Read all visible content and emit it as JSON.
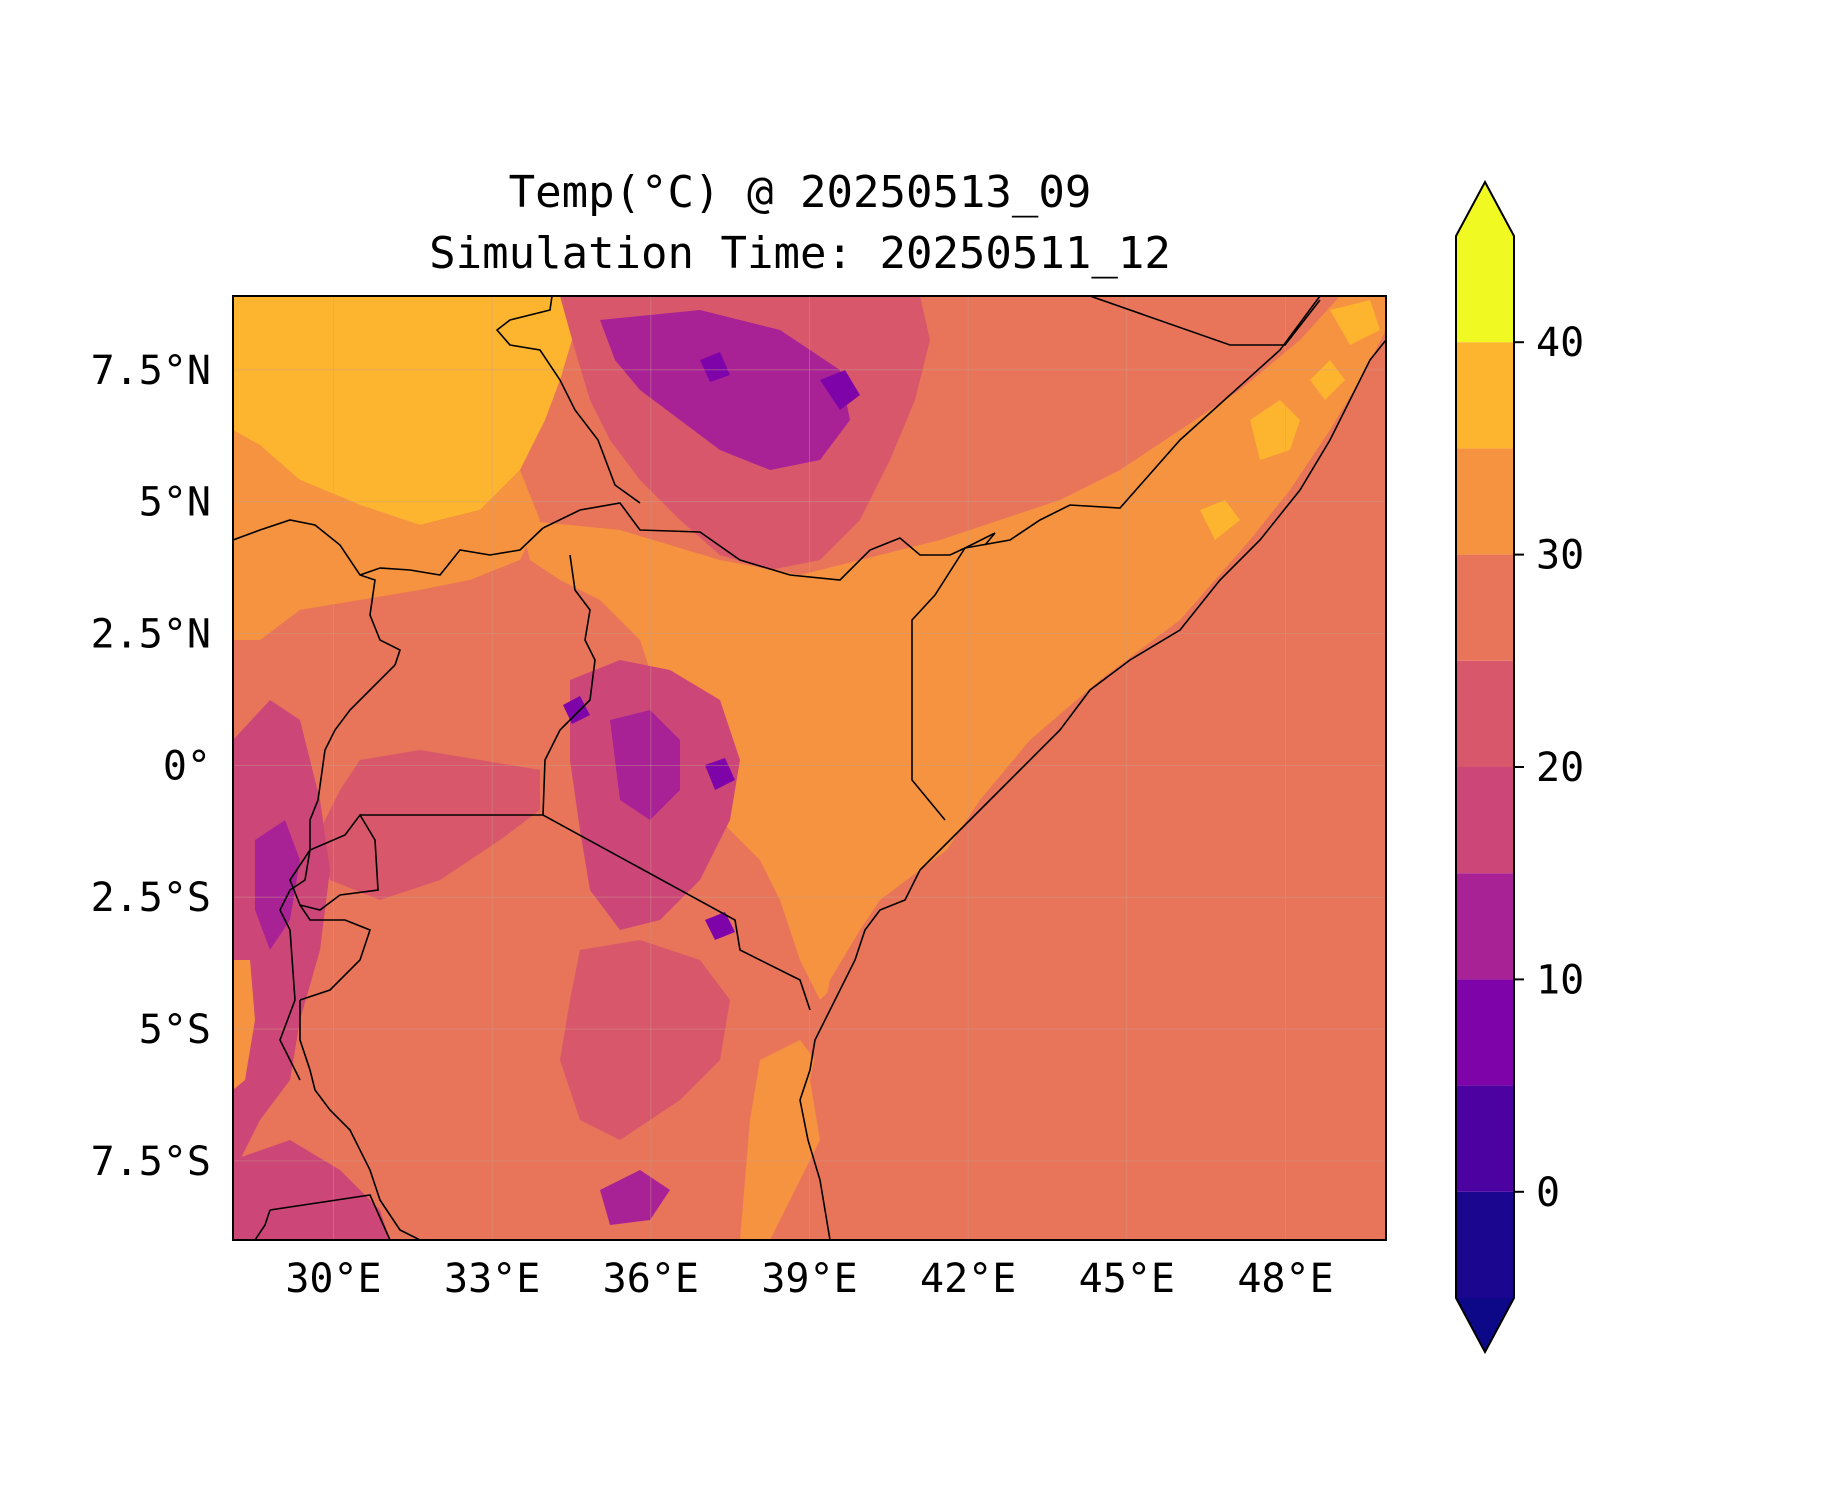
{
  "title": {
    "line1": "Temp(°C) @ 20250513_09",
    "line2": "Simulation Time: 20250511_12"
  },
  "map": {
    "type": "filled-contour temperature map",
    "region": "East Africa",
    "lon_ticks": [
      "30°E",
      "33°E",
      "36°E",
      "39°E",
      "42°E",
      "45°E",
      "48°E"
    ],
    "lat_ticks": [
      "7.5°N",
      "5°N",
      "2.5°N",
      "0°",
      "2.5°S",
      "5°S",
      "7.5°S"
    ],
    "lon_values": [
      30,
      33,
      36,
      39,
      42,
      45,
      48
    ],
    "lat_values": [
      7.5,
      5,
      2.5,
      0,
      -2.5,
      -5,
      -7.5
    ],
    "lon_range": [
      28.1,
      49.9
    ],
    "lat_range": [
      -9,
      8.9
    ],
    "grid": true,
    "borders": "country borders and coastline in black"
  },
  "colorbar": {
    "ticks": [
      "0",
      "10",
      "20",
      "30",
      "40"
    ],
    "tick_values": [
      0,
      10,
      20,
      30,
      40
    ],
    "range": [
      -5,
      45
    ],
    "extend": "both",
    "levels": [
      -5,
      0,
      5,
      10,
      15,
      20,
      25,
      30,
      35,
      40,
      45
    ],
    "colors": [
      "#1a068f",
      "#4c02a1",
      "#7e03a8",
      "#a82296",
      "#cc4778",
      "#d8576b",
      "#e8745a",
      "#f59340",
      "#fdb42f",
      "#f0f921"
    ],
    "under_color": "#0d0887",
    "over_color": "#f0f921"
  },
  "colors": {
    "ocean": "#e8745a",
    "desert_hot": "#fdb42f",
    "warm": "#f59340",
    "moderate": "#e8745a",
    "cool": "#d8576b",
    "cooler": "#cc4778",
    "cold": "#a82296",
    "coldest": "#7e03a8"
  }
}
